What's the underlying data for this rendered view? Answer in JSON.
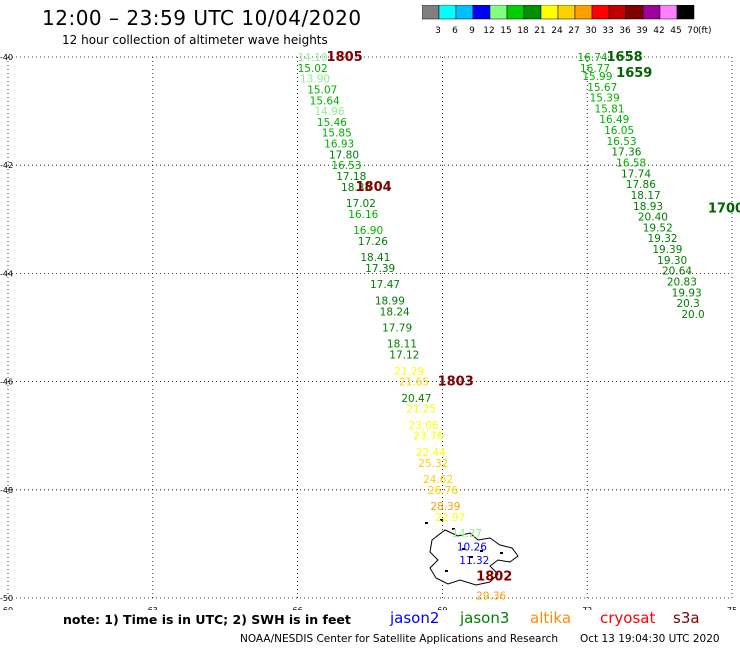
{
  "title": "12:00 – 23:59 UTC 10/04/2020",
  "subtitle": "12 hour collection of altimeter wave heights",
  "legend": {
    "unit": "(ft)",
    "labels": [
      "3",
      "6",
      "9",
      "12",
      "15",
      "18",
      "21",
      "24",
      "27",
      "30",
      "33",
      "36",
      "39",
      "42",
      "45",
      "70"
    ],
    "colors": [
      "#808080",
      "#00ffff",
      "#00c0ff",
      "#0000ff",
      "#80ff80",
      "#00d000",
      "#009000",
      "#ffff00",
      "#ffd000",
      "#ffa000",
      "#ff0000",
      "#c00000",
      "#800000",
      "#a000a0",
      "#ff80ff",
      "#000000"
    ]
  },
  "map": {
    "lon_range": [
      60,
      75
    ],
    "lat_range": [
      -50,
      -40
    ],
    "lon_ticks": [
      "60",
      "63",
      "66",
      "69",
      "72",
      "75"
    ],
    "lat_ticks": [
      "-40",
      "-42",
      "-44",
      "-46",
      "-48",
      "-50"
    ],
    "grid": true
  },
  "tracks": [
    {
      "time": "1805",
      "color": "#800000",
      "lat": -40.0,
      "lon": 66.6
    },
    {
      "time": "1804",
      "color": "#800000",
      "lat": -42.4,
      "lon": 67.2
    },
    {
      "time": "1803",
      "color": "#800000",
      "lat": -46.0,
      "lon": 68.9
    },
    {
      "time": "1802",
      "color": "#800000",
      "lat": -49.6,
      "lon": 69.7
    },
    {
      "time": "1658",
      "color": "#006400",
      "lat": -40.0,
      "lon": 72.4
    },
    {
      "time": "1659",
      "color": "#006400",
      "lat": -40.3,
      "lon": 72.6
    },
    {
      "time": "1700",
      "color": "#006400",
      "lat": -42.8,
      "lon": 74.5
    }
  ],
  "points": [
    {
      "v": "14.10",
      "c": "#90ee90",
      "lat": -40.0,
      "lon": 66.0
    },
    {
      "v": "15.02",
      "c": "#00b000",
      "lat": -40.2,
      "lon": 66.0
    },
    {
      "v": "13.90",
      "c": "#90ee90",
      "lat": -40.4,
      "lon": 66.05
    },
    {
      "v": "15.07",
      "c": "#00b000",
      "lat": -40.6,
      "lon": 66.2
    },
    {
      "v": "15.64",
      "c": "#00b000",
      "lat": -40.8,
      "lon": 66.25
    },
    {
      "v": "14.96",
      "c": "#90ee90",
      "lat": -41.0,
      "lon": 66.35
    },
    {
      "v": "15.46",
      "c": "#00b000",
      "lat": -41.2,
      "lon": 66.4
    },
    {
      "v": "15.85",
      "c": "#00b000",
      "lat": -41.4,
      "lon": 66.5
    },
    {
      "v": "16.93",
      "c": "#00b000",
      "lat": -41.6,
      "lon": 66.55
    },
    {
      "v": "17.80",
      "c": "#008000",
      "lat": -41.8,
      "lon": 66.65
    },
    {
      "v": "16.53",
      "c": "#00b000",
      "lat": -42.0,
      "lon": 66.7
    },
    {
      "v": "17.18",
      "c": "#008000",
      "lat": -42.2,
      "lon": 66.8
    },
    {
      "v": "18.35",
      "c": "#008000",
      "lat": -42.4,
      "lon": 66.9
    },
    {
      "v": "17.02",
      "c": "#008000",
      "lat": -42.7,
      "lon": 67.0
    },
    {
      "v": "16.16",
      "c": "#00b000",
      "lat": -42.9,
      "lon": 67.05
    },
    {
      "v": "16.90",
      "c": "#00b000",
      "lat": -43.2,
      "lon": 67.15
    },
    {
      "v": "17.26",
      "c": "#008000",
      "lat": -43.4,
      "lon": 67.25
    },
    {
      "v": "18.41",
      "c": "#008000",
      "lat": -43.7,
      "lon": 67.3
    },
    {
      "v": "17.39",
      "c": "#008000",
      "lat": -43.9,
      "lon": 67.4
    },
    {
      "v": "17.47",
      "c": "#008000",
      "lat": -44.2,
      "lon": 67.5
    },
    {
      "v": "18.99",
      "c": "#008000",
      "lat": -44.5,
      "lon": 67.6
    },
    {
      "v": "18.24",
      "c": "#008000",
      "lat": -44.7,
      "lon": 67.7
    },
    {
      "v": "17.79",
      "c": "#008000",
      "lat": -45.0,
      "lon": 67.75
    },
    {
      "v": "18.11",
      "c": "#008000",
      "lat": -45.3,
      "lon": 67.85
    },
    {
      "v": "17.12",
      "c": "#008000",
      "lat": -45.5,
      "lon": 67.9
    },
    {
      "v": "21.29",
      "c": "#ffff00",
      "lat": -45.8,
      "lon": 68.0
    },
    {
      "v": "21.65",
      "c": "#ffd000",
      "lat": -46.0,
      "lon": 68.1
    },
    {
      "v": "20.47",
      "c": "#008000",
      "lat": -46.3,
      "lon": 68.15
    },
    {
      "v": "21.25",
      "c": "#ffff00",
      "lat": -46.5,
      "lon": 68.25
    },
    {
      "v": "23.06",
      "c": "#ffff00",
      "lat": -46.8,
      "lon": 68.3
    },
    {
      "v": "23.76",
      "c": "#ffff00",
      "lat": -47.0,
      "lon": 68.4
    },
    {
      "v": "22.44",
      "c": "#ffff00",
      "lat": -47.3,
      "lon": 68.45
    },
    {
      "v": "25.32",
      "c": "#ffd000",
      "lat": -47.5,
      "lon": 68.5
    },
    {
      "v": "24.62",
      "c": "#ffd000",
      "lat": -47.8,
      "lon": 68.6
    },
    {
      "v": "26.76",
      "c": "#ffd000",
      "lat": -48.0,
      "lon": 68.7
    },
    {
      "v": "28.39",
      "c": "#ffa000",
      "lat": -48.3,
      "lon": 68.75
    },
    {
      "v": "22.97",
      "c": "#ffff00",
      "lat": -48.5,
      "lon": 68.85
    },
    {
      "v": "14.27",
      "c": "#90ee90",
      "lat": -48.8,
      "lon": 69.2
    },
    {
      "v": "10.26",
      "c": "#0000ff",
      "lat": -49.05,
      "lon": 69.3
    },
    {
      "v": "11.32",
      "c": "#0000ff",
      "lat": -49.3,
      "lon": 69.35
    },
    {
      "v": "29.36",
      "c": "#ffa000",
      "lat": -49.95,
      "lon": 69.7
    },
    {
      "v": "16.74",
      "c": "#00b000",
      "lat": -40.0,
      "lon": 71.8
    },
    {
      "v": "16.77",
      "c": "#00b000",
      "lat": -40.2,
      "lon": 71.85
    },
    {
      "v": "15.99",
      "c": "#00b000",
      "lat": -40.35,
      "lon": 71.9
    },
    {
      "v": "15.67",
      "c": "#00b000",
      "lat": -40.55,
      "lon": 72.0
    },
    {
      "v": "15.39",
      "c": "#00b000",
      "lat": -40.75,
      "lon": 72.05
    },
    {
      "v": "15.81",
      "c": "#00b000",
      "lat": -40.95,
      "lon": 72.15
    },
    {
      "v": "16.49",
      "c": "#00b000",
      "lat": -41.15,
      "lon": 72.25
    },
    {
      "v": "16.05",
      "c": "#00b000",
      "lat": -41.35,
      "lon": 72.35
    },
    {
      "v": "16.53",
      "c": "#00b000",
      "lat": -41.55,
      "lon": 72.4
    },
    {
      "v": "17.36",
      "c": "#008000",
      "lat": -41.75,
      "lon": 72.5
    },
    {
      "v": "16.58",
      "c": "#00b000",
      "lat": -41.95,
      "lon": 72.6
    },
    {
      "v": "17.74",
      "c": "#008000",
      "lat": -42.15,
      "lon": 72.7
    },
    {
      "v": "17.86",
      "c": "#008000",
      "lat": -42.35,
      "lon": 72.8
    },
    {
      "v": "18.17",
      "c": "#008000",
      "lat": -42.55,
      "lon": 72.9
    },
    {
      "v": "18.93",
      "c": "#008000",
      "lat": -42.75,
      "lon": 72.95
    },
    {
      "v": "20.40",
      "c": "#008000",
      "lat": -42.95,
      "lon": 73.05
    },
    {
      "v": "19.52",
      "c": "#008000",
      "lat": -43.15,
      "lon": 73.15
    },
    {
      "v": "19.32",
      "c": "#008000",
      "lat": -43.35,
      "lon": 73.25
    },
    {
      "v": "19.39",
      "c": "#008000",
      "lat": -43.55,
      "lon": 73.35
    },
    {
      "v": "19.30",
      "c": "#008000",
      "lat": -43.75,
      "lon": 73.45
    },
    {
      "v": "20.64",
      "c": "#008000",
      "lat": -43.95,
      "lon": 73.55
    },
    {
      "v": "20.83",
      "c": "#008000",
      "lat": -44.15,
      "lon": 73.65
    },
    {
      "v": "19.93",
      "c": "#008000",
      "lat": -44.35,
      "lon": 73.75
    },
    {
      "v": "20.3",
      "c": "#008000",
      "lat": -44.55,
      "lon": 73.85
    },
    {
      "v": "20.0",
      "c": "#008000",
      "lat": -44.75,
      "lon": 73.95
    }
  ],
  "note": "note:  1) Time is in UTC;  2) SWH is in feet",
  "satellites": [
    {
      "name": "jason2",
      "color": "#0000ff"
    },
    {
      "name": "jason3",
      "color": "#008000"
    },
    {
      "name": "altika",
      "color": "#ff8c00"
    },
    {
      "name": "cryosat",
      "color": "#ff0000"
    },
    {
      "name": "s3a",
      "color": "#800000"
    }
  ],
  "credit": "NOAA/NESDIS Center for Satellite Applications and Research",
  "timestamp": "Oct 13 19:04:30 UTC 2020"
}
